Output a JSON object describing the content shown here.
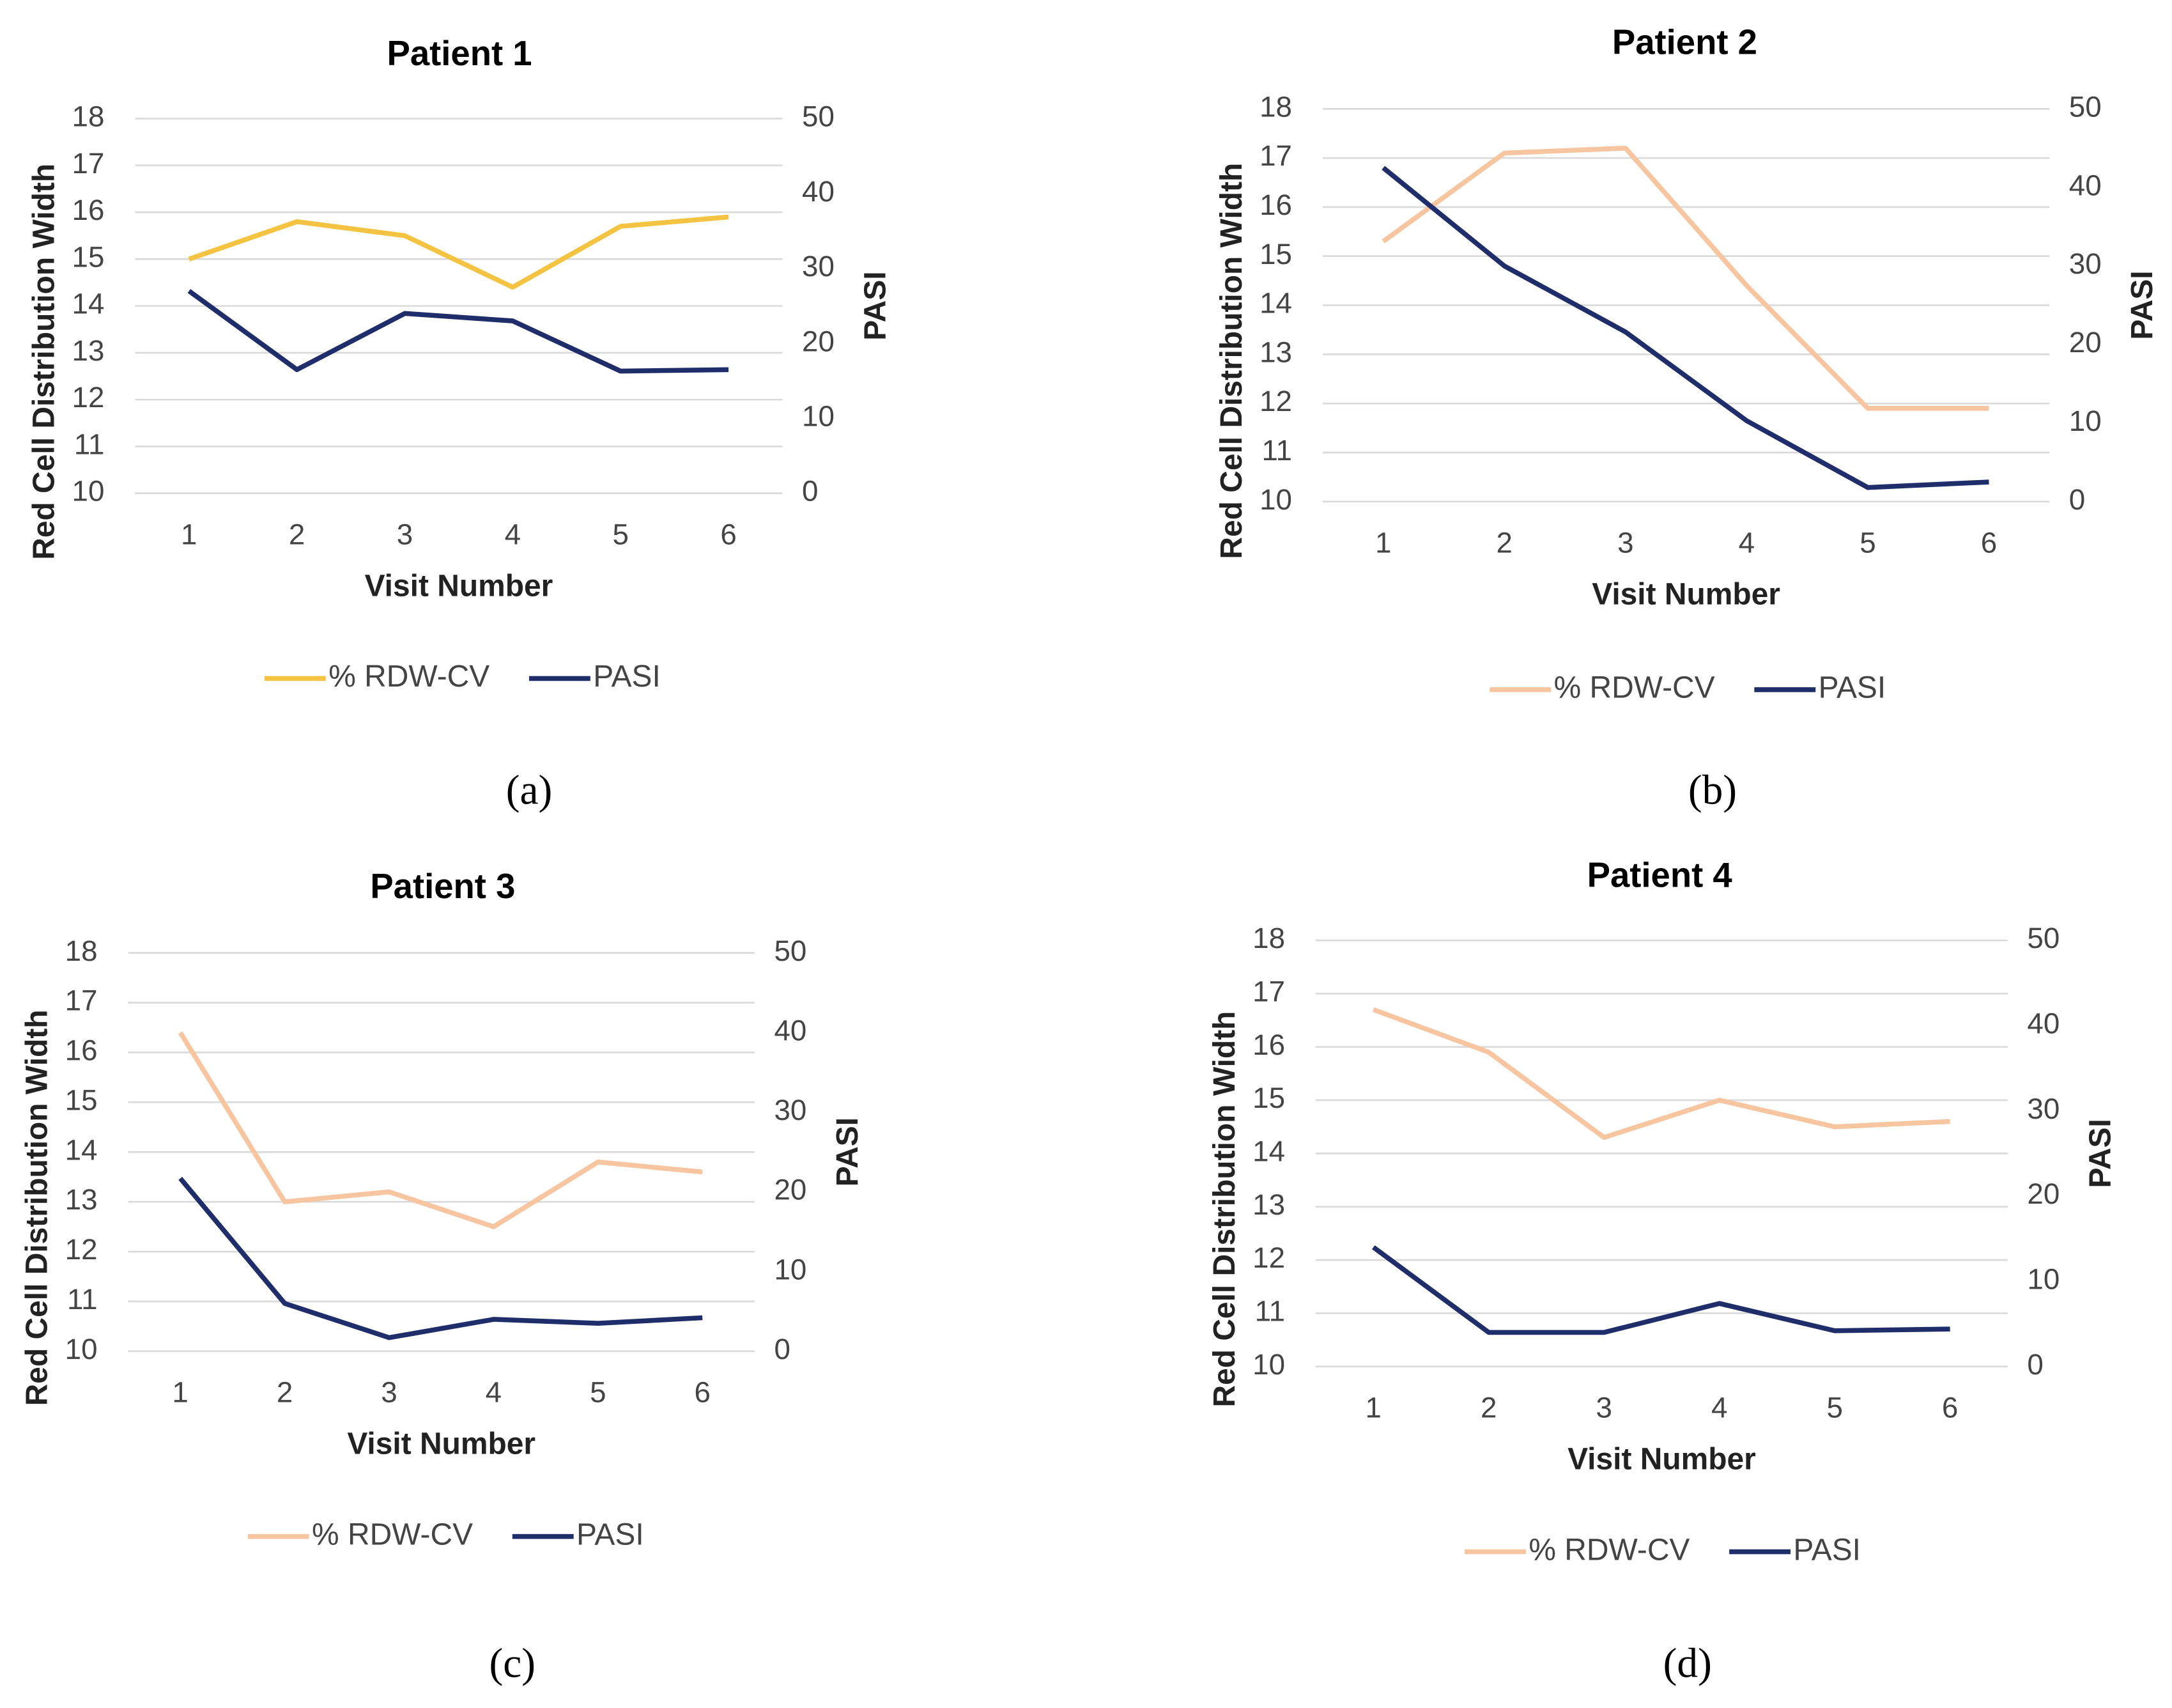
{
  "chart_data": [
    {
      "type": "line",
      "title": "Patient 1",
      "caption": "(a)",
      "x_label": "Visit Number",
      "y_label": "Red Cell Distribution Width",
      "y2_label": "PASI",
      "categories": [
        "1",
        "2",
        "3",
        "4",
        "5",
        "6"
      ],
      "ylim": [
        10,
        18
      ],
      "yticks": [
        10,
        11,
        12,
        13,
        14,
        15,
        16,
        17,
        18
      ],
      "y2lim": [
        0,
        50
      ],
      "y2ticks": [
        0,
        10,
        20,
        30,
        40,
        50
      ],
      "grid": true,
      "series": [
        {
          "name": "% RDW-CV",
          "color": "#f5c342",
          "values": [
            15.0,
            15.8,
            15.5,
            14.4,
            15.7,
            15.9
          ]
        },
        {
          "name": "PASI",
          "color": "#1f2d6b",
          "axis": "y2",
          "values": [
            27,
            16.5,
            24,
            23,
            16.3,
            16.5
          ]
        }
      ]
    },
    {
      "type": "line",
      "title": "Patient 2",
      "caption": "(b)",
      "x_label": "Visit Number",
      "y_label": "Red Cell Distribution Width",
      "y2_label": "PASI",
      "categories": [
        "1",
        "2",
        "3",
        "4",
        "5",
        "6"
      ],
      "ylim": [
        10,
        18
      ],
      "yticks": [
        10,
        11,
        12,
        13,
        14,
        15,
        16,
        17,
        18
      ],
      "y2lim": [
        0,
        50
      ],
      "y2ticks": [
        0,
        10,
        20,
        30,
        40,
        50
      ],
      "grid": true,
      "series": [
        {
          "name": "% RDW-CV",
          "color": "#f7c59f",
          "values": [
            15.3,
            17.1,
            17.2,
            14.4,
            11.9,
            11.9
          ]
        },
        {
          "name": "PASI",
          "color": "#1f2d6b",
          "axis": "y2",
          "values": [
            42.5,
            30,
            21.6,
            10.3,
            1.8,
            2.5
          ]
        }
      ]
    },
    {
      "type": "line",
      "title": "Patient 3",
      "caption": "(c)",
      "x_label": "Visit Number",
      "y_label": "Red Cell Distribution Width",
      "y2_label": "PASI",
      "categories": [
        "1",
        "2",
        "3",
        "4",
        "5",
        "6"
      ],
      "ylim": [
        10,
        18
      ],
      "yticks": [
        10,
        11,
        12,
        13,
        14,
        15,
        16,
        17,
        18
      ],
      "y2lim": [
        0,
        50
      ],
      "y2ticks": [
        0,
        10,
        20,
        30,
        40,
        50
      ],
      "grid": true,
      "series": [
        {
          "name": "% RDW-CV",
          "color": "#f7c59f",
          "values": [
            16.4,
            13.0,
            13.2,
            12.5,
            13.8,
            13.6
          ]
        },
        {
          "name": "PASI",
          "color": "#1f2d6b",
          "axis": "y2",
          "values": [
            21.7,
            6,
            1.7,
            4,
            3.5,
            4.2
          ]
        }
      ]
    },
    {
      "type": "line",
      "title": "Patient 4",
      "caption": "(d)",
      "x_label": "Visit Number",
      "y_label": "Red Cell Distribution Width",
      "y2_label": "PASI",
      "categories": [
        "1",
        "2",
        "3",
        "4",
        "5",
        "6"
      ],
      "ylim": [
        10,
        18
      ],
      "yticks": [
        10,
        11,
        12,
        13,
        14,
        15,
        16,
        17,
        18
      ],
      "y2lim": [
        0,
        50
      ],
      "y2ticks": [
        0,
        10,
        20,
        30,
        40,
        50
      ],
      "grid": true,
      "series": [
        {
          "name": "% RDW-CV",
          "color": "#f7c59f",
          "values": [
            16.7,
            15.9,
            14.3,
            15.0,
            14.5,
            14.6
          ]
        },
        {
          "name": "PASI",
          "color": "#1f2d6b",
          "axis": "y2",
          "values": [
            14,
            4,
            4,
            7.4,
            4.2,
            4.4
          ]
        }
      ]
    }
  ]
}
